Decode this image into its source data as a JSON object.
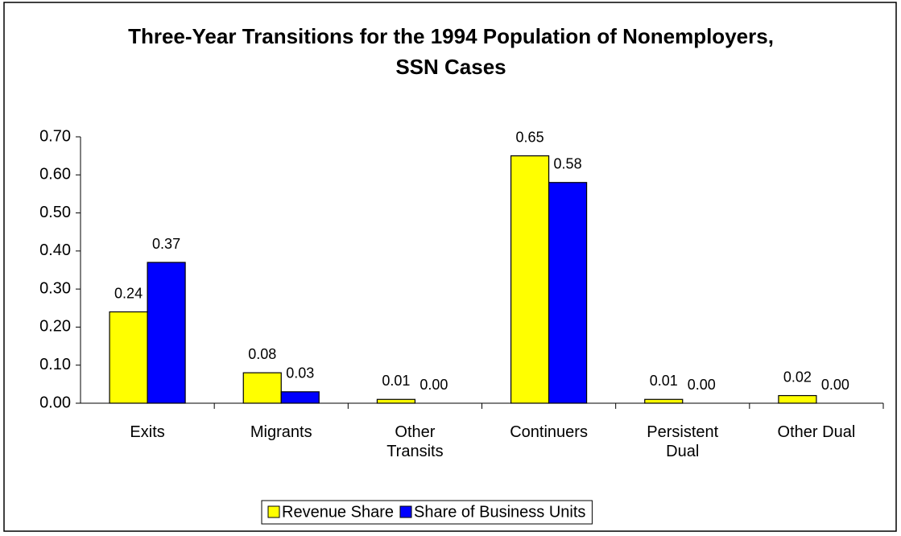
{
  "chart_data": {
    "type": "bar",
    "title": "Three-Year Transitions for the 1994 Population of Nonemployers, SSN Cases",
    "categories": [
      "Exits",
      "Migrants",
      "Other Transits",
      "Continuers",
      "Persistent Dual",
      "Other Dual"
    ],
    "series": [
      {
        "name": "Revenue Share",
        "color": "#ffff00",
        "values": [
          0.24,
          0.08,
          0.01,
          0.65,
          0.01,
          0.02
        ],
        "value_labels": [
          "0.24",
          "0.08",
          "0.01",
          "0.65",
          "0.01",
          "0.02"
        ]
      },
      {
        "name": "Share of Business Units",
        "color": "#0000ff",
        "values": [
          0.37,
          0.03,
          0,
          0.58,
          0,
          0
        ],
        "value_labels": [
          "0.37",
          "0.03",
          "0.00",
          "0.58",
          "0.00",
          "0.00"
        ]
      }
    ],
    "ylim": [
      0,
      0.7
    ],
    "yticks": [
      {
        "value": 0,
        "label": "0.00"
      },
      {
        "value": 0.1,
        "label": "0.10"
      },
      {
        "value": 0.2,
        "label": "0.20"
      },
      {
        "value": 0.3,
        "label": "0.30"
      },
      {
        "value": 0.4,
        "label": "0.40"
      },
      {
        "value": 0.5,
        "label": "0.50"
      },
      {
        "value": 0.6,
        "label": "0.60"
      },
      {
        "value": 0.7,
        "label": "0.70"
      }
    ],
    "grid": false,
    "legend": "bottom"
  }
}
